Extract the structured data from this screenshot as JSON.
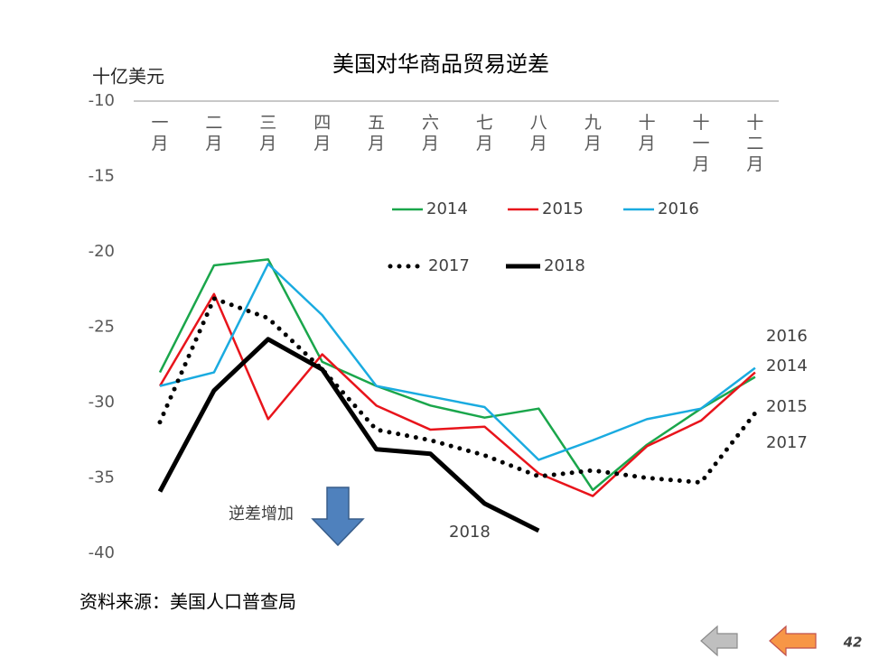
{
  "chart_data": {
    "type": "line",
    "title": "美国对华商品贸易逆差",
    "y_label": "十亿美元",
    "source": "资料来源：美国人口普查局",
    "page_number": "42",
    "categories": [
      "一月",
      "二月",
      "三月",
      "四月",
      "五月",
      "六月",
      "七月",
      "八月",
      "九月",
      "十月",
      "十一月",
      "十二月"
    ],
    "ylim": [
      -40,
      -10
    ],
    "yticks": [
      -10,
      -15,
      -20,
      -25,
      -30,
      -35,
      -40
    ],
    "grid": false,
    "series": [
      {
        "name": "2014",
        "color": "#1aa64b",
        "line_style": "solid",
        "values": [
          -28.0,
          -20.9,
          -20.5,
          -27.3,
          -28.9,
          -30.2,
          -31.0,
          -30.4,
          -35.8,
          -32.8,
          -30.4,
          -28.3
        ]
      },
      {
        "name": "2015",
        "color": "#e8141b",
        "line_style": "solid",
        "values": [
          -28.9,
          -22.8,
          -31.1,
          -26.8,
          -30.2,
          -31.8,
          -31.6,
          -34.7,
          -36.2,
          -32.9,
          -31.2,
          -28.0
        ]
      },
      {
        "name": "2016",
        "color": "#1aabe0",
        "line_style": "solid",
        "values": [
          -28.9,
          -28.0,
          -20.8,
          -24.2,
          -28.9,
          -29.6,
          -30.3,
          -33.8,
          -32.5,
          -31.1,
          -30.4,
          -27.7
        ]
      },
      {
        "name": "2017",
        "color": "#000000",
        "line_style": "dotted",
        "values": [
          -31.3,
          -23.1,
          -24.4,
          -27.8,
          -31.8,
          -32.5,
          -33.5,
          -34.9,
          -34.5,
          -35.0,
          -35.3,
          -30.7
        ]
      },
      {
        "name": "2018",
        "color": "#000000",
        "line_style": "thick",
        "values": [
          -35.9,
          -29.2,
          -25.8,
          -27.8,
          -33.1,
          -33.4,
          -36.7,
          -38.5,
          null,
          null,
          null,
          null
        ]
      }
    ],
    "annotations": [
      "2016",
      "2014",
      "2015",
      "2017",
      "2018",
      "逆差增加"
    ]
  }
}
